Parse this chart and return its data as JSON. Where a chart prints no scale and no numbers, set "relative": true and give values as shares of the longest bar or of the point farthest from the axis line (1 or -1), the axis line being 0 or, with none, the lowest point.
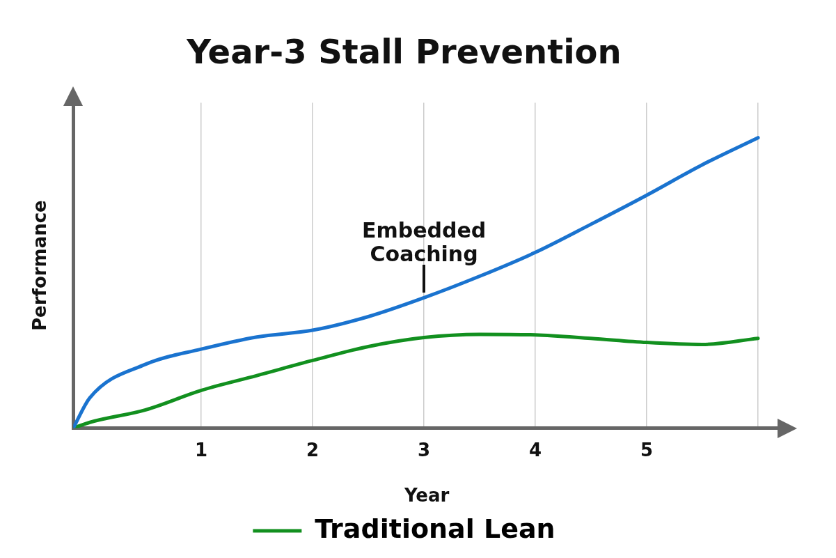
{
  "chart_data": {
    "type": "line",
    "title": "Year-3 Stall Prevention",
    "xlabel": "Year",
    "ylabel": "Performance",
    "relative": true,
    "x": [
      -0.15,
      0,
      0.5,
      1,
      1.5,
      2,
      2.5,
      3,
      3.5,
      4,
      4.5,
      5,
      5.5,
      6
    ],
    "xlim": [
      -0.15,
      6.2
    ],
    "xticks": [
      1,
      2,
      3,
      4,
      5,
      {
        "value": 6,
        "label": null
      }
    ],
    "series": [
      {
        "color": "#1a73cf",
        "values": [
          0,
          0.105,
          0.22,
          0.272,
          0.314,
          0.337,
          0.384,
          0.449,
          0.523,
          0.605,
          0.702,
          0.802,
          0.907,
          1
        ]
      },
      {
        "name": "Traditional Lean",
        "color": "#12901f",
        "values": [
          0,
          0.02,
          0.063,
          0.13,
          0.181,
          0.233,
          0.281,
          0.312,
          0.323,
          0.321,
          0.309,
          0.295,
          0.288,
          0.309
        ]
      }
    ],
    "annotations": [
      {
        "text": "Embedded Coaching",
        "x": 3,
        "y": 0.449
      }
    ],
    "grid": "x",
    "legend": "bottom",
    "marker": "none",
    "line_style": "solid"
  }
}
